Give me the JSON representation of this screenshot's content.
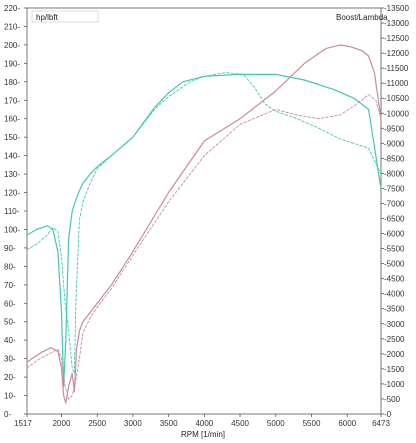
{
  "chart_data": {
    "type": "line",
    "xlabel": "RPM [1/min]",
    "left_axis_label": "hp/lbft",
    "right_axis_label": "Boost/Lambda",
    "xlim": [
      1517,
      6473
    ],
    "ylim_left": [
      0,
      220
    ],
    "ylim_right": [
      0,
      13500
    ],
    "x_tick_labels": [
      "1517",
      "2000",
      "2500",
      "3000",
      "3500",
      "4000",
      "4500",
      "5000",
      "5500",
      "6000",
      "6473"
    ],
    "x_tick_values": [
      1517,
      2000,
      2500,
      3000,
      3500,
      4000,
      4500,
      5000,
      5500,
      6000,
      6473
    ],
    "y_left_ticks": [
      0,
      10,
      20,
      30,
      40,
      50,
      60,
      70,
      80,
      90,
      100,
      110,
      120,
      130,
      140,
      150,
      160,
      170,
      180,
      190,
      200,
      210,
      220
    ],
    "y_left_tick_labels": [
      "0",
      "10",
      "20",
      "30",
      "40",
      "50",
      "60",
      "70",
      "80",
      "90",
      "100",
      "110",
      "120",
      "130",
      "140",
      "150",
      "160",
      "170",
      "180",
      "190",
      "200",
      "210",
      "220"
    ],
    "y_right_ticks": [
      0,
      500,
      1000,
      1500,
      2000,
      2500,
      3000,
      3500,
      4000,
      4500,
      5000,
      5500,
      6000,
      6500,
      7000,
      7500,
      8000,
      8500,
      9000,
      9500,
      10000,
      10500,
      11000,
      11500,
      12000,
      12500,
      13000,
      13500
    ],
    "y_right_tick_labels": [
      "0",
      "500",
      "1000",
      "1500",
      "2000",
      "2500",
      "3000",
      "3500",
      "4000",
      "4500",
      "5000",
      "5500",
      "6000",
      "6500",
      "7000",
      "7500",
      "8000",
      "8500",
      "9000",
      "9500",
      "10000",
      "10500",
      "11000",
      "11500",
      "12000",
      "12500",
      "13000",
      "13500"
    ],
    "grid": false,
    "series": [
      {
        "color": "#40c8b4",
        "dash": "solid",
        "x": [
          1517,
          1650,
          1800,
          1880,
          1950,
          2000,
          2030,
          2060,
          2100,
          2150,
          2200,
          2250,
          2300,
          2400,
          2500,
          2700,
          3000,
          3300,
          3500,
          3700,
          4000,
          4500,
          5000,
          5400,
          5800,
          6100,
          6300,
          6473
        ],
        "y": [
          97,
          100,
          102,
          100,
          88,
          55,
          15,
          40,
          95,
          110,
          116,
          121,
          125,
          130,
          134,
          140,
          150,
          166,
          174,
          180,
          183,
          184,
          184,
          181,
          176,
          171,
          165,
          122
        ]
      },
      {
        "color": "#40c8b4",
        "dash": "dashed",
        "x": [
          1517,
          1650,
          1800,
          1880,
          1950,
          2000,
          2050,
          2100,
          2150,
          2180,
          2200,
          2250,
          2300,
          2400,
          2500,
          2700,
          3000,
          3300,
          3500,
          3800,
          4000,
          4300,
          4550,
          4700,
          4850,
          5000,
          5300,
          5600,
          5900,
          6150,
          6300,
          6473
        ],
        "y": [
          89,
          92,
          97,
          101,
          99,
          85,
          60,
          45,
          25,
          22,
          60,
          105,
          115,
          125,
          133,
          140,
          150,
          165,
          172,
          180,
          183,
          185,
          184,
          177,
          168,
          164,
          160,
          155,
          149,
          146,
          144,
          130
        ]
      },
      {
        "color": "#c88a9c",
        "dash": "solid",
        "x": [
          1517,
          1700,
          1850,
          1950,
          2000,
          2030,
          2060,
          2100,
          2150,
          2180,
          2210,
          2250,
          2300,
          2400,
          2500,
          2700,
          3000,
          3500,
          4000,
          4500,
          5000,
          5400,
          5700,
          5900,
          6050,
          6200,
          6300,
          6380,
          6473
        ],
        "y": [
          28,
          33,
          36,
          34,
          25,
          10,
          6,
          15,
          22,
          12,
          35,
          45,
          50,
          55,
          60,
          70,
          88,
          120,
          148,
          160,
          175,
          190,
          198,
          200,
          199,
          197,
          194,
          185,
          160
        ]
      },
      {
        "color": "#c88a9c",
        "dash": "dashed",
        "x": [
          1517,
          1700,
          1850,
          1950,
          2000,
          2050,
          2100,
          2150,
          2200,
          2250,
          2300,
          2400,
          2500,
          2700,
          3000,
          3500,
          4000,
          4500,
          5000,
          5300,
          5600,
          5900,
          6100,
          6300,
          6400,
          6473
        ],
        "y": [
          25,
          30,
          33,
          35,
          30,
          15,
          8,
          10,
          18,
          30,
          44,
          52,
          58,
          68,
          86,
          115,
          140,
          157,
          165,
          162,
          160,
          162,
          167,
          173,
          170,
          160
        ]
      }
    ]
  }
}
